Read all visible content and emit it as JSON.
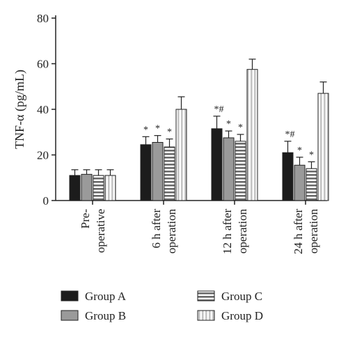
{
  "chart_data": {
    "type": "bar",
    "ylabel": "TNF-α (pg/mL)",
    "ylim": [
      0,
      80
    ],
    "yticks": [
      0,
      20,
      40,
      60,
      80
    ],
    "categories": [
      [
        "Pre-",
        "operative"
      ],
      [
        "6 h after",
        "operation"
      ],
      [
        "12 h after",
        "operation"
      ],
      [
        "24 h after",
        "operation"
      ]
    ],
    "series": [
      {
        "name": "Group A",
        "values": [
          11,
          24.5,
          31.5,
          21
        ],
        "errors": [
          2.5,
          3.5,
          5.5,
          5
        ],
        "color": "#1c1c1c",
        "pattern": "solid"
      },
      {
        "name": "Group B",
        "values": [
          11.5,
          25.5,
          27.5,
          15.5
        ],
        "errors": [
          2,
          3,
          3,
          3.5
        ],
        "color": "#9a9a9a",
        "pattern": "solid"
      },
      {
        "name": "Group C",
        "values": [
          11,
          23.5,
          26,
          14
        ],
        "errors": [
          2.5,
          3.5,
          3,
          3
        ],
        "color": "#666666",
        "pattern": "horizontal-stripes"
      },
      {
        "name": "Group D",
        "values": [
          11,
          40,
          57.5,
          47
        ],
        "errors": [
          2.5,
          5.5,
          4.5,
          5
        ],
        "color": "#d8d8d8",
        "pattern": "vertical-stripes"
      }
    ],
    "annotations": [
      [
        "",
        "",
        "",
        ""
      ],
      [
        "*",
        "*",
        "*",
        ""
      ],
      [
        "*#",
        "*",
        "*",
        ""
      ],
      [
        "*#",
        "*",
        "*",
        ""
      ]
    ],
    "legend_position": "bottom",
    "grid": false
  }
}
